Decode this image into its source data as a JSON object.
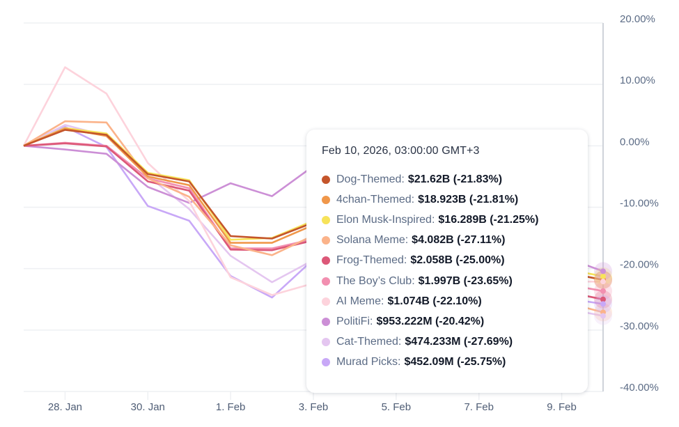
{
  "chart_data": {
    "type": "line",
    "title": "",
    "xlabel": "",
    "ylabel": "",
    "x": [
      "27. Jan",
      "28. Jan",
      "29. Jan",
      "30. Jan",
      "31. Jan",
      "1. Feb",
      "2. Feb",
      "3. Feb",
      "4. Feb",
      "5. Feb",
      "6. Feb",
      "7. Feb",
      "8. Feb",
      "9. Feb",
      "10. Feb"
    ],
    "x_tick_labels": [
      "28. Jan",
      "30. Jan",
      "1. Feb",
      "3. Feb",
      "5. Feb",
      "7. Feb",
      "9. Feb"
    ],
    "y_tick_labels": [
      "20.00%",
      "10.00%",
      "0.00%",
      "-10.00%",
      "-20.00%",
      "-30.00%",
      "-40.00%"
    ],
    "ylim": [
      -40,
      20
    ],
    "y_unit": "%",
    "grid": true,
    "y_axis_position": "right",
    "series": [
      {
        "name": "Dog-Themed",
        "color": "#c4552b",
        "values": [
          0,
          2.6,
          1.8,
          -4.6,
          -5.8,
          -14.7,
          -15.1,
          -12.5,
          null,
          null,
          null,
          null,
          null,
          null,
          -21.83
        ]
      },
      {
        "name": "4chan-Themed",
        "color": "#f0974a",
        "values": [
          0,
          2.8,
          1.6,
          -5.0,
          -6.4,
          -15.8,
          -15.8,
          -12.9,
          null,
          null,
          null,
          null,
          null,
          null,
          -21.81
        ]
      },
      {
        "name": "Elon Musk-Inspired",
        "color": "#f7e35a",
        "values": [
          0,
          2.9,
          2.0,
          -4.4,
          -5.6,
          -15.3,
          -15.0,
          -12.2,
          null,
          null,
          null,
          null,
          null,
          null,
          -21.25
        ]
      },
      {
        "name": "Solana Meme",
        "color": "#fbb38a",
        "values": [
          0,
          4.0,
          3.8,
          -5.3,
          -8.3,
          -16.2,
          -17.8,
          -14.6,
          null,
          null,
          null,
          null,
          null,
          null,
          -27.11
        ]
      },
      {
        "name": "Frog-Themed",
        "color": "#dc5878",
        "values": [
          0,
          0.4,
          -0.1,
          -5.8,
          -7.3,
          -16.9,
          -17.0,
          -15.4,
          null,
          null,
          null,
          null,
          null,
          null,
          -25.0
        ]
      },
      {
        "name": "The Boy’s Club",
        "color": "#f28fb0",
        "values": [
          0,
          0.5,
          0.0,
          -5.3,
          -6.9,
          -16.7,
          -16.7,
          -15.2,
          null,
          null,
          null,
          null,
          null,
          null,
          -23.65
        ]
      },
      {
        "name": "AI Meme",
        "color": "#fdd3dc",
        "values": [
          0,
          12.8,
          8.5,
          -2.8,
          -9.0,
          -21.4,
          -24.3,
          -22.4,
          null,
          null,
          null,
          null,
          null,
          null,
          -22.1
        ]
      },
      {
        "name": "PolitiFi",
        "color": "#cc8fd6",
        "values": [
          0,
          -0.6,
          -1.3,
          -6.7,
          -9.3,
          -6.1,
          -8.2,
          -3.3,
          null,
          null,
          null,
          null,
          null,
          null,
          -20.42
        ]
      },
      {
        "name": "Cat-Themed",
        "color": "#e4c6f0",
        "values": [
          0,
          3.4,
          1.6,
          -4.9,
          -10.3,
          -17.9,
          -22.2,
          -18.6,
          null,
          null,
          null,
          null,
          null,
          null,
          -27.69
        ]
      },
      {
        "name": "Murad Picks",
        "color": "#c8a8f7",
        "values": [
          0,
          3.1,
          -0.2,
          -9.8,
          -12.2,
          -21.2,
          -24.7,
          -18.5,
          null,
          null,
          null,
          null,
          null,
          null,
          -25.75
        ]
      }
    ]
  },
  "tooltip": {
    "title": "Feb 10, 2026, 03:00:00 GMT+3",
    "rows": [
      {
        "name": "Dog-Themed:",
        "value": "$21.62B (-21.83%)",
        "color": "#c4552b"
      },
      {
        "name": "4chan-Themed:",
        "value": "$18.923B (-21.81%)",
        "color": "#f0974a"
      },
      {
        "name": "Elon Musk-Inspired:",
        "value": "$16.289B (-21.25%)",
        "color": "#f7e35a"
      },
      {
        "name": "Solana Meme:",
        "value": "$4.082B (-27.11%)",
        "color": "#fbb38a"
      },
      {
        "name": "Frog-Themed:",
        "value": "$2.058B (-25.00%)",
        "color": "#dc5878"
      },
      {
        "name": "The Boy’s Club:",
        "value": "$1.997B (-23.65%)",
        "color": "#f28fb0"
      },
      {
        "name": "AI Meme:",
        "value": "$1.074B (-22.10%)",
        "color": "#fdd3dc"
      },
      {
        "name": "PolitiFi:",
        "value": "$953.222M (-20.42%)",
        "color": "#cc8fd6"
      },
      {
        "name": "Cat-Themed:",
        "value": "$474.233M (-27.69%)",
        "color": "#e4c6f0"
      },
      {
        "name": "Murad Picks:",
        "value": "$452.09M (-25.75%)",
        "color": "#c8a8f7"
      }
    ]
  }
}
